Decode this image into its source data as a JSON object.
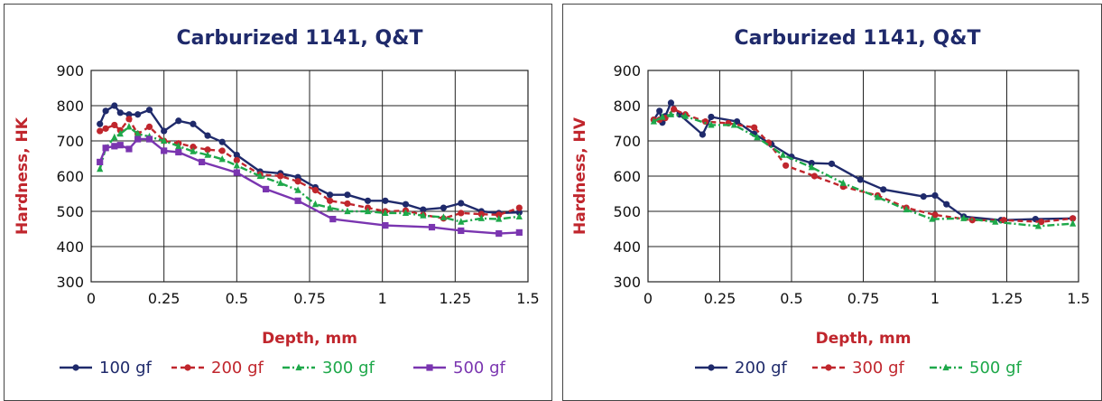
{
  "chart_data": [
    {
      "type": "line",
      "title": "Carburized 1141, Q&T",
      "xlabel": "Depth, mm",
      "ylabel": "Hardness, HK",
      "xlim": [
        0,
        1.5
      ],
      "ylim": [
        300,
        900
      ],
      "xticks": [
        "0",
        "0.25",
        "0.5",
        "0.75",
        "1",
        "1.25",
        "1.5"
      ],
      "yticks": [
        "300",
        "400",
        "500",
        "600",
        "700",
        "800",
        "900"
      ],
      "grid": true,
      "legend_position": "bottom",
      "series": [
        {
          "name": "100 gf",
          "color": "#1f2a6b",
          "marker": "circle",
          "dash": "solid",
          "x": [
            0.03,
            0.05,
            0.08,
            0.1,
            0.13,
            0.16,
            0.2,
            0.25,
            0.3,
            0.35,
            0.4,
            0.45,
            0.5,
            0.58,
            0.65,
            0.71,
            0.77,
            0.82,
            0.88,
            0.95,
            1.01,
            1.08,
            1.14,
            1.21,
            1.27,
            1.34,
            1.4,
            1.47
          ],
          "y": [
            748,
            785,
            800,
            780,
            775,
            775,
            788,
            728,
            757,
            748,
            715,
            697,
            660,
            613,
            608,
            597,
            568,
            547,
            547,
            530,
            530,
            520,
            505,
            510,
            523,
            500,
            495,
            497
          ]
        },
        {
          "name": "200 gf",
          "color": "#c0262d",
          "marker": "circle",
          "dash": "6,4",
          "x": [
            0.03,
            0.05,
            0.08,
            0.1,
            0.13,
            0.16,
            0.2,
            0.25,
            0.3,
            0.35,
            0.4,
            0.45,
            0.5,
            0.58,
            0.65,
            0.71,
            0.77,
            0.82,
            0.88,
            0.95,
            1.01,
            1.08,
            1.14,
            1.21,
            1.27,
            1.34,
            1.4,
            1.47
          ],
          "y": [
            728,
            735,
            745,
            730,
            762,
            720,
            740,
            700,
            693,
            683,
            675,
            672,
            645,
            605,
            600,
            585,
            560,
            530,
            522,
            510,
            500,
            502,
            490,
            480,
            495,
            492,
            490,
            510
          ]
        },
        {
          "name": "300 gf",
          "color": "#1ea84a",
          "marker": "triangle",
          "dash": "8,3,2,3",
          "x": [
            0.03,
            0.05,
            0.08,
            0.1,
            0.13,
            0.16,
            0.2,
            0.25,
            0.3,
            0.35,
            0.4,
            0.45,
            0.5,
            0.58,
            0.65,
            0.71,
            0.77,
            0.82,
            0.88,
            0.95,
            1.01,
            1.08,
            1.14,
            1.21,
            1.27,
            1.34,
            1.4,
            1.47
          ],
          "y": [
            620,
            680,
            710,
            720,
            740,
            720,
            712,
            700,
            685,
            670,
            660,
            648,
            630,
            600,
            580,
            560,
            520,
            510,
            500,
            500,
            495,
            495,
            488,
            483,
            470,
            480,
            478,
            485
          ]
        },
        {
          "name": "500 gf",
          "color": "#7a35b0",
          "marker": "square",
          "dash": "solid",
          "x": [
            0.03,
            0.05,
            0.08,
            0.1,
            0.13,
            0.16,
            0.2,
            0.25,
            0.3,
            0.38,
            0.5,
            0.6,
            0.71,
            0.83,
            1.01,
            1.17,
            1.27,
            1.4,
            1.47
          ],
          "y": [
            640,
            680,
            685,
            688,
            677,
            705,
            705,
            672,
            668,
            640,
            610,
            563,
            530,
            478,
            460,
            455,
            445,
            437,
            440
          ]
        }
      ]
    },
    {
      "type": "line",
      "title": "Carburized 1141, Q&T",
      "xlabel": "Depth, mm",
      "ylabel": "Hardness, HV",
      "xlim": [
        0,
        1.5
      ],
      "ylim": [
        300,
        900
      ],
      "xticks": [
        "0",
        "0.25",
        "0.5",
        "0.75",
        "1",
        "1.25",
        "1.5"
      ],
      "yticks": [
        "300",
        "400",
        "500",
        "600",
        "700",
        "800",
        "900"
      ],
      "grid": true,
      "legend_position": "bottom",
      "series": [
        {
          "name": "200 gf",
          "color": "#1f2a6b",
          "marker": "circle",
          "dash": "solid",
          "x": [
            0.02,
            0.04,
            0.05,
            0.06,
            0.08,
            0.11,
            0.19,
            0.22,
            0.31,
            0.37,
            0.43,
            0.5,
            0.57,
            0.64,
            0.74,
            0.82,
            0.96,
            1.0,
            1.04,
            1.1,
            1.23,
            1.35,
            1.48
          ],
          "y": [
            760,
            785,
            752,
            770,
            808,
            775,
            718,
            768,
            755,
            720,
            690,
            655,
            637,
            635,
            590,
            562,
            542,
            545,
            520,
            485,
            475,
            478,
            480
          ]
        },
        {
          "name": "300 gf",
          "color": "#c0262d",
          "marker": "circle",
          "dash": "6,4",
          "x": [
            0.02,
            0.04,
            0.06,
            0.09,
            0.13,
            0.2,
            0.28,
            0.37,
            0.42,
            0.48,
            0.58,
            0.68,
            0.8,
            0.9,
            1.0,
            1.13,
            1.24,
            1.37,
            1.48
          ],
          "y": [
            760,
            760,
            765,
            790,
            775,
            755,
            750,
            738,
            695,
            630,
            600,
            570,
            545,
            510,
            490,
            475,
            475,
            470,
            480
          ]
        },
        {
          "name": "500 gf",
          "color": "#1ea84a",
          "marker": "triangle",
          "dash": "8,3,2,3",
          "x": [
            0.02,
            0.05,
            0.08,
            0.13,
            0.22,
            0.3,
            0.38,
            0.47,
            0.57,
            0.68,
            0.8,
            0.9,
            0.99,
            1.1,
            1.21,
            1.36,
            1.48
          ],
          "y": [
            755,
            768,
            775,
            770,
            745,
            745,
            710,
            660,
            625,
            580,
            540,
            505,
            478,
            480,
            470,
            458,
            465
          ]
        }
      ]
    }
  ]
}
